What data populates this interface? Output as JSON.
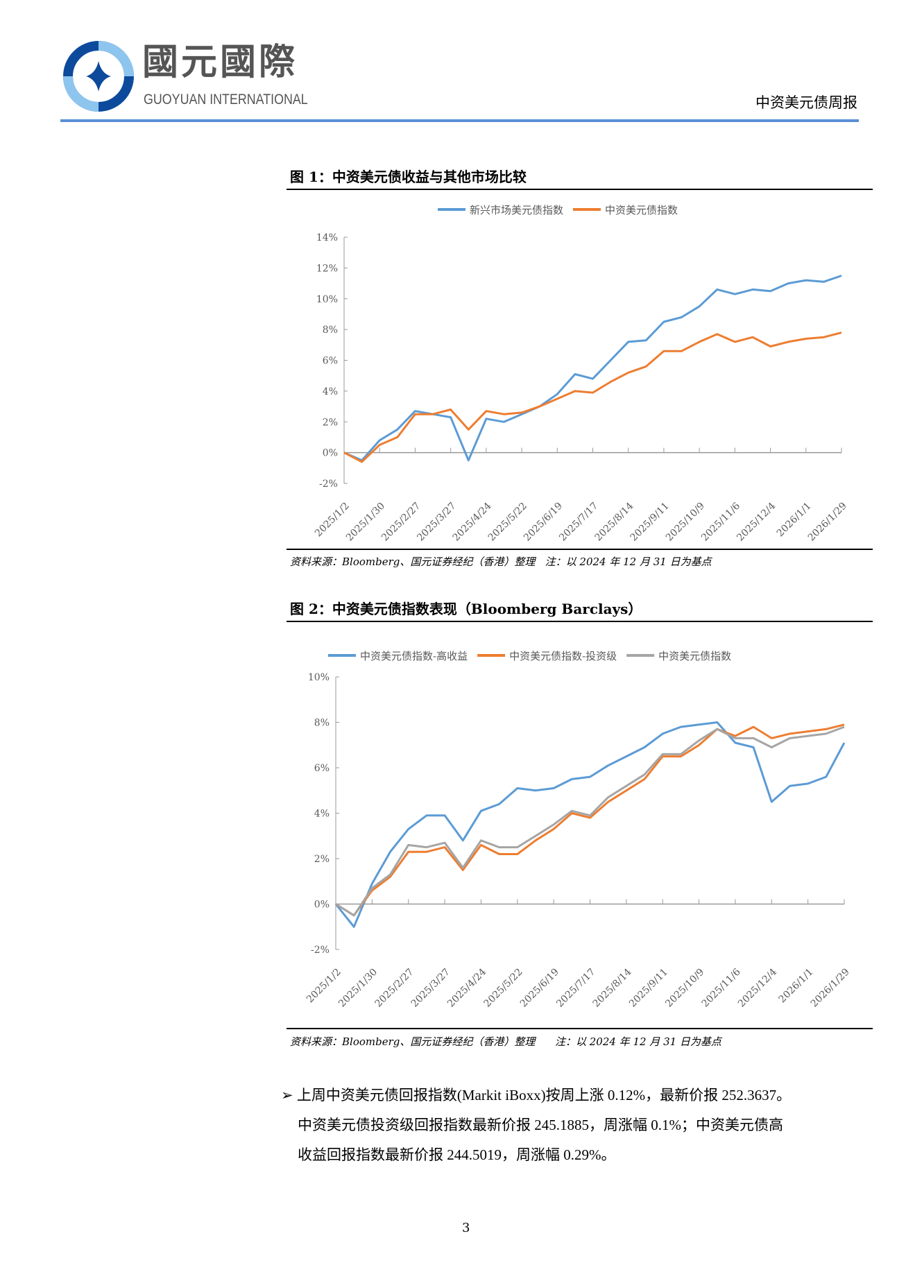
{
  "header": {
    "logo_cn": "國元國際",
    "logo_en": "GUOYUAN INTERNATIONAL",
    "report_name": "中资美元债周报"
  },
  "figure1": {
    "title": "图 1：中资美元债收益与其他市场比较",
    "source": "资料来源：Bloomberg、国元证券经纪（香港）整理   注：以 2024 年 12 月 31 日为基点"
  },
  "figure2": {
    "title": "图 2：中资美元债指数表现（Bloomberg Barclays）",
    "source": "资料来源：Bloomberg、国元证券经纪（香港）整理      注：以 2024 年 12 月 31 日为基点"
  },
  "paragraph": {
    "bullet": "➢",
    "lines": [
      "上周中资美元债回报指数(Markit iBoxx)按周上涨 0.12%，最新价报 252.3637。",
      "中资美元债投资级回报指数最新价报 245.1885，周涨幅 0.1%；中资美元债高",
      "收益回报指数最新价报 244.5019，周涨幅 0.29%。"
    ]
  },
  "page_number": "3",
  "chart_data": [
    {
      "type": "line",
      "title": "",
      "ylim": [
        -2,
        14
      ],
      "yticks": [
        "-2%",
        "0%",
        "2%",
        "4%",
        "6%",
        "8%",
        "10%",
        "12%",
        "14%"
      ],
      "ytick_values": [
        -2,
        0,
        2,
        4,
        6,
        8,
        10,
        12,
        14
      ],
      "xtick_labels": [
        "2025/1/2",
        "2025/1/30",
        "2025/2/27",
        "2025/3/27",
        "2025/4/24",
        "2025/5/22",
        "2025/6/19",
        "2025/7/17",
        "2025/8/14",
        "2025/9/11",
        "2025/10/9",
        "2025/11/6",
        "2025/12/4",
        "2026/1/1",
        "2026/1/29"
      ],
      "x": [
        "2025/1/2",
        "2025/1/16",
        "2025/1/30",
        "2025/2/13",
        "2025/2/27",
        "2025/3/13",
        "2025/3/27",
        "2025/4/10",
        "2025/4/24",
        "2025/5/8",
        "2025/5/22",
        "2025/6/5",
        "2025/6/19",
        "2025/7/3",
        "2025/7/17",
        "2025/7/31",
        "2025/8/14",
        "2025/8/28",
        "2025/9/11",
        "2025/9/25",
        "2025/10/9",
        "2025/10/23",
        "2025/11/6",
        "2025/11/20",
        "2025/12/4",
        "2025/12/18",
        "2026/1/1",
        "2026/1/15",
        "2026/1/29"
      ],
      "legend": "top",
      "series": [
        {
          "name": "新兴市场美元债指数",
          "color": "#5b9bd5",
          "values": [
            0,
            -0.5,
            0.8,
            1.5,
            2.7,
            2.5,
            2.3,
            -0.5,
            2.2,
            2.0,
            2.5,
            3.0,
            3.8,
            5.1,
            4.8,
            6.0,
            7.2,
            7.3,
            8.5,
            8.8,
            9.5,
            10.6,
            10.3,
            10.6,
            10.5,
            11.0,
            11.2,
            11.1,
            11.5
          ]
        },
        {
          "name": "中资美元债指数",
          "color": "#ed7d31",
          "values": [
            0,
            -0.6,
            0.5,
            1.0,
            2.5,
            2.5,
            2.8,
            1.5,
            2.7,
            2.5,
            2.6,
            3.0,
            3.5,
            4.0,
            3.9,
            4.6,
            5.2,
            5.6,
            6.6,
            6.6,
            7.2,
            7.7,
            7.2,
            7.5,
            6.9,
            7.2,
            7.4,
            7.5,
            7.8
          ]
        }
      ]
    },
    {
      "type": "line",
      "title": "",
      "ylim": [
        -2,
        10
      ],
      "yticks": [
        "-2%",
        "0%",
        "2%",
        "4%",
        "6%",
        "8%",
        "10%"
      ],
      "ytick_values": [
        -2,
        0,
        2,
        4,
        6,
        8,
        10
      ],
      "xtick_labels": [
        "2025/1/2",
        "2025/1/30",
        "2025/2/27",
        "2025/3/27",
        "2025/4/24",
        "2025/5/22",
        "2025/6/19",
        "2025/7/17",
        "2025/8/14",
        "2025/9/11",
        "2025/10/9",
        "2025/11/6",
        "2025/12/4",
        "2026/1/1",
        "2026/1/29"
      ],
      "x": [
        "2025/1/2",
        "2025/1/16",
        "2025/1/30",
        "2025/2/13",
        "2025/2/27",
        "2025/3/13",
        "2025/3/27",
        "2025/4/10",
        "2025/4/24",
        "2025/5/8",
        "2025/5/22",
        "2025/6/5",
        "2025/6/19",
        "2025/7/3",
        "2025/7/17",
        "2025/7/31",
        "2025/8/14",
        "2025/8/28",
        "2025/9/11",
        "2025/9/25",
        "2025/10/9",
        "2025/10/23",
        "2025/11/6",
        "2025/11/20",
        "2025/12/4",
        "2025/12/18",
        "2026/1/1",
        "2026/1/15",
        "2026/1/29"
      ],
      "legend": "top",
      "series": [
        {
          "name": "中资美元债指数-高收益",
          "color": "#5b9bd5",
          "values": [
            0,
            -1.0,
            0.9,
            2.3,
            3.3,
            3.9,
            3.9,
            2.8,
            4.1,
            4.4,
            5.1,
            5.0,
            5.1,
            5.5,
            5.6,
            6.1,
            6.5,
            6.9,
            7.5,
            7.8,
            7.9,
            8.0,
            7.1,
            6.9,
            4.5,
            5.2,
            5.3,
            5.6,
            7.1
          ]
        },
        {
          "name": "中资美元债指数-投资级",
          "color": "#ed7d31",
          "values": [
            0,
            -0.5,
            0.6,
            1.2,
            2.3,
            2.3,
            2.5,
            1.5,
            2.6,
            2.2,
            2.2,
            2.8,
            3.3,
            4.0,
            3.8,
            4.5,
            5.0,
            5.5,
            6.5,
            6.5,
            7.0,
            7.7,
            7.4,
            7.8,
            7.3,
            7.5,
            7.6,
            7.7,
            7.9
          ]
        },
        {
          "name": "中资美元债指数",
          "color": "#a5a5a5",
          "values": [
            0,
            -0.5,
            0.7,
            1.3,
            2.6,
            2.5,
            2.7,
            1.6,
            2.8,
            2.5,
            2.5,
            3.0,
            3.5,
            4.1,
            3.9,
            4.7,
            5.2,
            5.7,
            6.6,
            6.6,
            7.2,
            7.7,
            7.3,
            7.3,
            6.9,
            7.3,
            7.4,
            7.5,
            7.8
          ]
        }
      ]
    }
  ]
}
